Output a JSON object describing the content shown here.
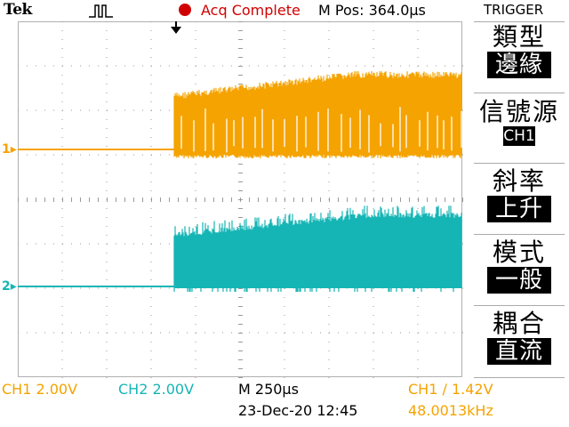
{
  "header": {
    "brand": "Tek",
    "acq_status": "Acq Complete",
    "m_pos": "M Pos: 364.0µs"
  },
  "trigger_menu": {
    "title": "TRIGGER",
    "items": [
      {
        "label": "類型",
        "value": "邊緣"
      },
      {
        "label": "信號源",
        "value": "CH1"
      },
      {
        "label": "斜率",
        "value": "上升"
      },
      {
        "label": "模式",
        "value": "一般"
      },
      {
        "label": "耦合",
        "value": "直流"
      }
    ]
  },
  "channels": [
    {
      "marker": "1",
      "color": "#f5a300"
    },
    {
      "marker": "2",
      "color": "#16b5b5"
    }
  ],
  "footer": {
    "ch1_scale": "CH1  2.00V",
    "ch2_scale": "CH2  2.00V",
    "timebase": "M 250µs",
    "datetime": "23-Dec-20 12:45",
    "trigger_info": "CH1 ∕ 1.42V",
    "frequency": "48.0013kHz"
  },
  "colors": {
    "ch1": "#f5a300",
    "ch2": "#16b5b5",
    "acq": "#d00000"
  }
}
